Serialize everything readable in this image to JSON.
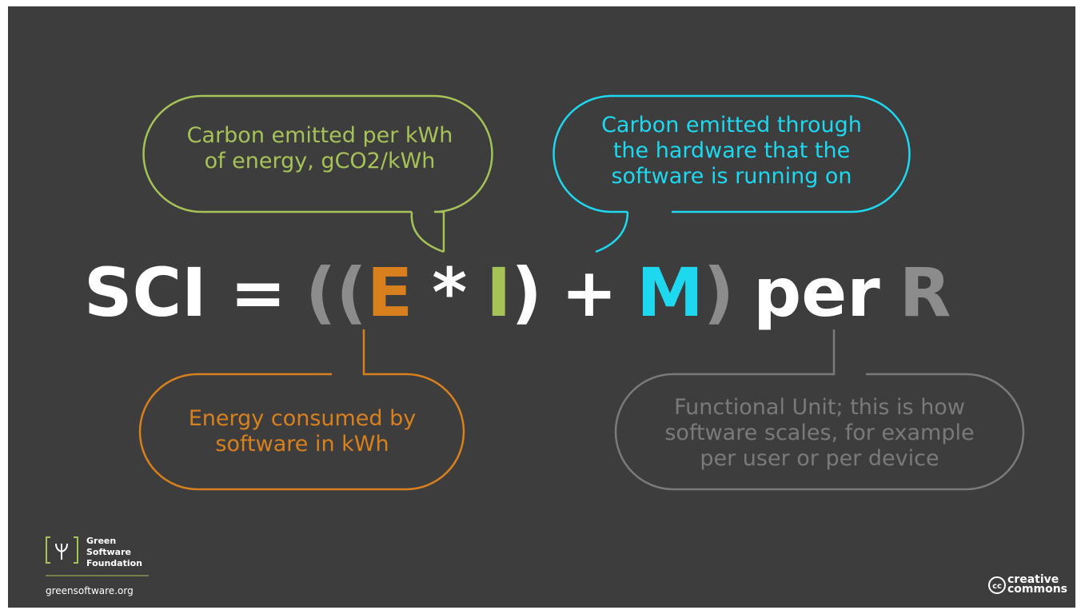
{
  "formula": {
    "parts": [
      {
        "text": "SCI =",
        "color": "#ffffff"
      },
      {
        "text": "((",
        "color": "#8c8c8c"
      },
      {
        "text": "E",
        "color": "#d9801e"
      },
      {
        "text": "*",
        "color": "#ffffff"
      },
      {
        "text": "I",
        "color": "#a7c257"
      },
      {
        "text": ")",
        "color": "#ffffff"
      },
      {
        "text": "+",
        "color": "#ffffff"
      },
      {
        "text": "M",
        "color": "#1ed8f0"
      },
      {
        "text": ")",
        "color": "#8c8c8c"
      },
      {
        "text": "per",
        "color": "#ffffff"
      },
      {
        "text": "R",
        "color": "#8c8c8c"
      }
    ]
  },
  "callouts": [
    {
      "lines": [
        "Carbon emitted per kWh",
        "of energy, gCO2/kWh"
      ],
      "color": "#a7c257"
    },
    {
      "lines": [
        "Carbon emitted through",
        "the hardware that the",
        "software is running on"
      ],
      "color": "#1ed8f0"
    },
    {
      "lines": [
        "Energy consumed by",
        "software in kWh"
      ],
      "color": "#d9801e"
    },
    {
      "lines": [
        "Functional Unit; this is how",
        "software scales, for example",
        "per user or per device"
      ],
      "color": "#7a7a7a"
    }
  ],
  "logo": {
    "lines": [
      "Green",
      "Software",
      "Foundation"
    ],
    "url": "greensoftware.org"
  },
  "license": {
    "lines": [
      "creative",
      "commons"
    ],
    "badge": "cc"
  }
}
